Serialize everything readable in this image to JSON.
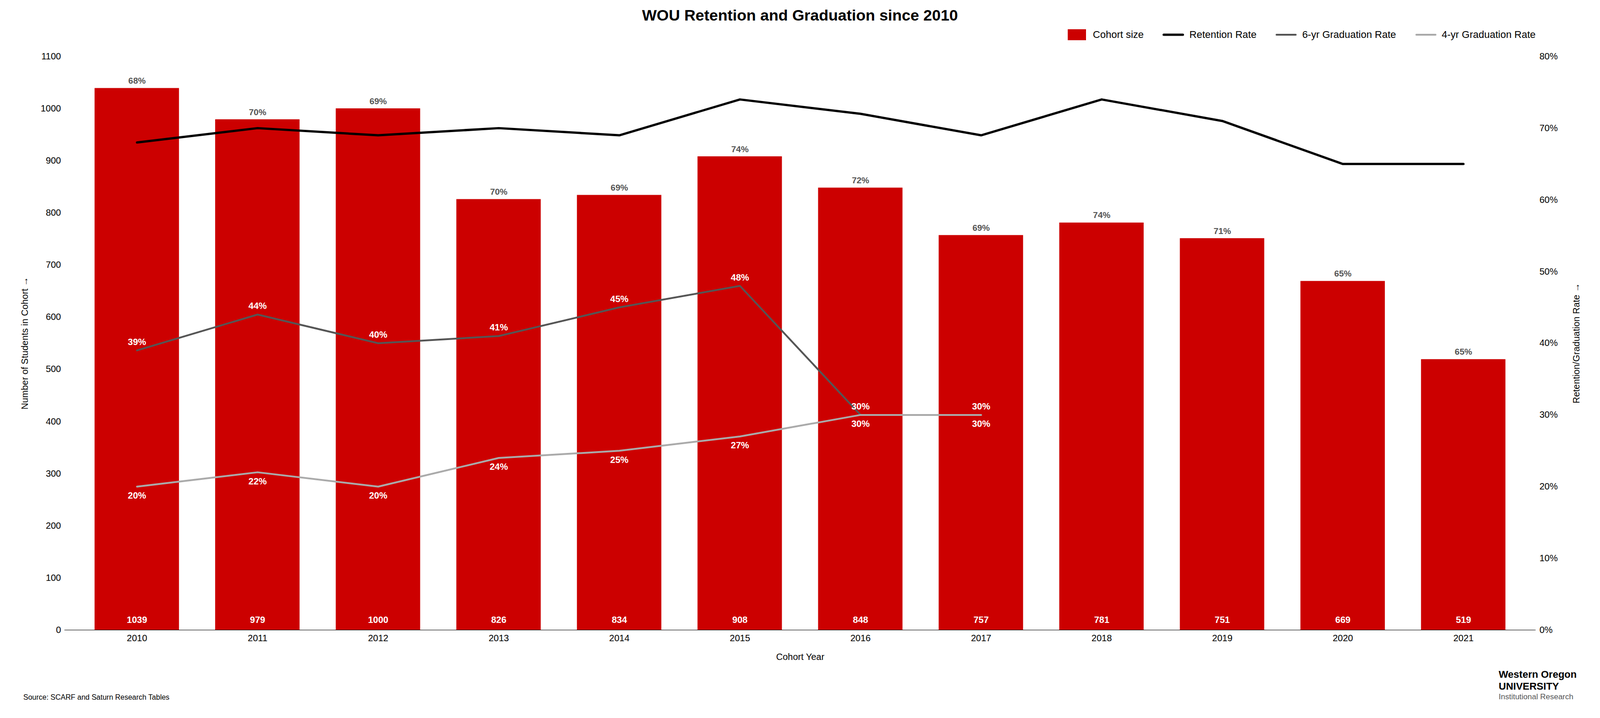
{
  "chart_data": {
    "type": "bar",
    "title": "WOU Retention and Graduation since 2010",
    "xlabel": "Cohort Year",
    "ylabel": "Number of Students in Cohort",
    "y2label": "Retention/Graduation Rate",
    "categories": [
      "2010",
      "2011",
      "2012",
      "2013",
      "2014",
      "2015",
      "2016",
      "2017",
      "2018",
      "2019",
      "2020",
      "2021"
    ],
    "series": [
      {
        "name": "Cohort size",
        "type": "bar",
        "color": "#CC0000",
        "values": [
          1039,
          979,
          1000,
          826,
          834,
          908,
          848,
          757,
          781,
          751,
          669,
          519
        ]
      },
      {
        "name": "Retention Rate",
        "type": "line",
        "axis": "y2",
        "color": "#000000",
        "values": [
          0.68,
          0.7,
          0.69,
          0.7,
          0.69,
          0.74,
          0.72,
          0.69,
          0.74,
          0.71,
          0.65,
          0.65
        ],
        "value_labels": [
          "68%",
          "70%",
          "69%",
          "70%",
          "69%",
          "74%",
          "72%",
          "69%",
          "74%",
          "71%",
          "65%",
          "65%"
        ]
      },
      {
        "name": "6-yr Graduation Rate",
        "type": "line",
        "axis": "y2",
        "color": "#555555",
        "values": [
          0.39,
          0.44,
          0.4,
          0.41,
          0.45,
          0.48,
          0.3,
          0.3,
          null,
          null,
          null,
          null
        ],
        "value_labels": [
          "39%",
          "44%",
          "40%",
          "41%",
          "45%",
          "48%",
          "30%",
          "30%",
          null,
          null,
          null,
          null
        ]
      },
      {
        "name": "4-yr Graduation Rate",
        "type": "line",
        "axis": "y2",
        "color": "#aaaaaa",
        "values": [
          0.2,
          0.22,
          0.2,
          0.24,
          0.25,
          0.27,
          0.3,
          0.3,
          null,
          null,
          null,
          null
        ],
        "value_labels": [
          "20%",
          "22%",
          "20%",
          "24%",
          "25%",
          "27%",
          "30%",
          "30%",
          null,
          null,
          null,
          null
        ]
      }
    ],
    "ylim": [
      0,
      1100
    ],
    "yticks": [
      0,
      100,
      200,
      300,
      400,
      500,
      600,
      700,
      800,
      900,
      1000,
      1100
    ],
    "y2lim": [
      0,
      0.8
    ],
    "y2ticks": [
      {
        "value": 0,
        "label": "0%"
      },
      {
        "value": 0.1,
        "label": "10%"
      },
      {
        "value": 0.2,
        "label": "20%"
      },
      {
        "value": 0.3,
        "label": "30%"
      },
      {
        "value": 0.4,
        "label": "40%"
      },
      {
        "value": 0.5,
        "label": "50%"
      },
      {
        "value": 0.6,
        "label": "60%"
      },
      {
        "value": 0.7,
        "label": "70%"
      },
      {
        "value": 0.8,
        "label": "80%"
      }
    ],
    "grid": false,
    "legend": "upper right",
    "data_labels": true,
    "annotations": [
      "Source: SCARF and Saturn Research Tables",
      "Western Oregon\nUNIVERSITY",
      "Institutional Research"
    ]
  }
}
